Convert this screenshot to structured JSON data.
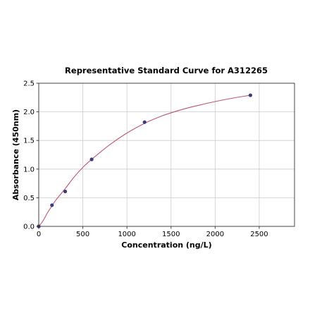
{
  "chart_data": {
    "type": "scatter",
    "title": "Representative Standard Curve for A312265",
    "xlabel": "Concentration (ng/L)",
    "ylabel": "Absorbance (450nm)",
    "xlim": [
      0,
      2900
    ],
    "ylim": [
      0,
      2.5
    ],
    "xticks": [
      0,
      500,
      1000,
      1500,
      2000,
      2500
    ],
    "yticks": [
      0.0,
      0.5,
      1.0,
      1.5,
      2.0,
      2.5
    ],
    "xtick_labels": [
      "0",
      "500",
      "1000",
      "1500",
      "2000",
      "2500"
    ],
    "ytick_labels": [
      "0.0",
      "0.5",
      "1.0",
      "1.5",
      "2.0",
      "2.5"
    ],
    "grid": true,
    "points": {
      "x": [
        0,
        150,
        300,
        600,
        1200,
        2400
      ],
      "y": [
        0.0,
        0.37,
        0.61,
        1.17,
        1.82,
        2.29
      ],
      "color": "#3b3d7a"
    },
    "fit_curve": {
      "x": [
        0,
        50,
        100,
        150,
        200,
        300,
        400,
        500,
        600,
        800,
        1000,
        1200,
        1400,
        1600,
        1800,
        2000,
        2200,
        2400
      ],
      "y": [
        0.0,
        0.1,
        0.24,
        0.36,
        0.47,
        0.66,
        0.86,
        1.03,
        1.17,
        1.42,
        1.63,
        1.8,
        1.93,
        2.03,
        2.11,
        2.18,
        2.24,
        2.29
      ],
      "color": "#c0566b"
    }
  }
}
